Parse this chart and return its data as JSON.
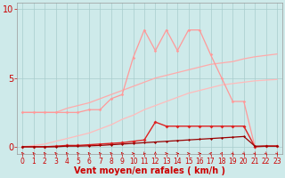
{
  "bg_color": "#ceeaea",
  "grid_color": "#a8cccc",
  "xlim": [
    -0.5,
    23.5
  ],
  "ylim": [
    -0.5,
    10.5
  ],
  "yticks": [
    0,
    5,
    10
  ],
  "xticks": [
    0,
    1,
    2,
    3,
    4,
    5,
    6,
    7,
    8,
    9,
    10,
    11,
    12,
    13,
    14,
    15,
    16,
    17,
    18,
    19,
    20,
    21,
    22,
    23
  ],
  "xlabel": "Vent moyen/en rafales ( km/h )",
  "xlabel_fontsize": 7,
  "ytick_fontsize": 7,
  "xtick_fontsize": 5.5,
  "text_color": "#cc0000",
  "line1_x": [
    0,
    1,
    2,
    3,
    4,
    5,
    6,
    7,
    8,
    9,
    10,
    11,
    12,
    13,
    14,
    15,
    16,
    17,
    18,
    19,
    20,
    21,
    22,
    23
  ],
  "line1_y": [
    2.5,
    2.5,
    2.5,
    2.5,
    2.8,
    3.0,
    3.2,
    3.5,
    3.8,
    4.1,
    4.4,
    4.7,
    5.0,
    5.2,
    5.4,
    5.6,
    5.8,
    6.0,
    6.1,
    6.2,
    6.4,
    6.55,
    6.65,
    6.75
  ],
  "line1_color": "#ffaaaa",
  "line1_lw": 0.9,
  "line2_x": [
    0,
    1,
    2,
    3,
    4,
    5,
    6,
    7,
    8,
    9,
    10,
    11,
    12,
    13,
    14,
    15,
    16,
    17,
    18,
    19,
    20,
    21,
    22,
    23
  ],
  "line2_y": [
    0.0,
    0.1,
    0.2,
    0.4,
    0.6,
    0.8,
    1.0,
    1.3,
    1.6,
    2.0,
    2.3,
    2.7,
    3.0,
    3.3,
    3.6,
    3.9,
    4.1,
    4.3,
    4.5,
    4.6,
    4.7,
    4.8,
    4.85,
    4.9
  ],
  "line2_color": "#ffbbbb",
  "line2_lw": 0.9,
  "line3_x": [
    0,
    1,
    2,
    3,
    4,
    5,
    6,
    7,
    8,
    9,
    10,
    11,
    12,
    13,
    14,
    15,
    16,
    17,
    18,
    19,
    20,
    21,
    22,
    23
  ],
  "line3_y": [
    2.5,
    2.5,
    2.5,
    2.5,
    2.5,
    2.5,
    2.7,
    2.7,
    3.5,
    3.8,
    6.5,
    8.5,
    7.0,
    8.5,
    7.0,
    8.5,
    8.5,
    6.7,
    5.0,
    3.3,
    3.3,
    0.0,
    0.05,
    0.05
  ],
  "line3_color": "#ff9999",
  "line3_lw": 0.9,
  "line3_marker": "D",
  "line3_ms": 1.8,
  "line4_x": [
    0,
    1,
    2,
    3,
    4,
    5,
    6,
    7,
    8,
    9,
    10,
    11,
    12,
    13,
    14,
    15,
    16,
    17,
    18,
    19,
    20,
    21,
    22,
    23
  ],
  "line4_y": [
    0.0,
    0.0,
    0.0,
    0.05,
    0.1,
    0.1,
    0.15,
    0.2,
    0.25,
    0.3,
    0.4,
    0.5,
    1.8,
    1.5,
    1.5,
    1.5,
    1.5,
    1.5,
    1.5,
    1.5,
    1.5,
    0.0,
    0.05,
    0.05
  ],
  "line4_color": "#dd2222",
  "line4_lw": 1.0,
  "line4_marker": "D",
  "line4_ms": 2.0,
  "line5_x": [
    0,
    1,
    2,
    3,
    4,
    5,
    6,
    7,
    8,
    9,
    10,
    11,
    12,
    13,
    14,
    15,
    16,
    17,
    18,
    19,
    20,
    21,
    22,
    23
  ],
  "line5_y": [
    0.0,
    0.0,
    0.0,
    0.0,
    0.05,
    0.05,
    0.07,
    0.1,
    0.15,
    0.2,
    0.25,
    0.3,
    0.35,
    0.4,
    0.45,
    0.5,
    0.55,
    0.6,
    0.65,
    0.7,
    0.75,
    0.05,
    0.05,
    0.05
  ],
  "line5_color": "#990000",
  "line5_lw": 0.9,
  "line5_marker": "D",
  "line5_ms": 1.5,
  "arrow_color": "#cc0000",
  "arrow_angles": [
    225,
    225,
    225,
    225,
    225,
    225,
    225,
    225,
    225,
    225,
    90,
    315,
    180,
    90,
    90,
    90,
    90,
    135,
    135,
    45,
    45,
    45,
    45,
    45
  ]
}
